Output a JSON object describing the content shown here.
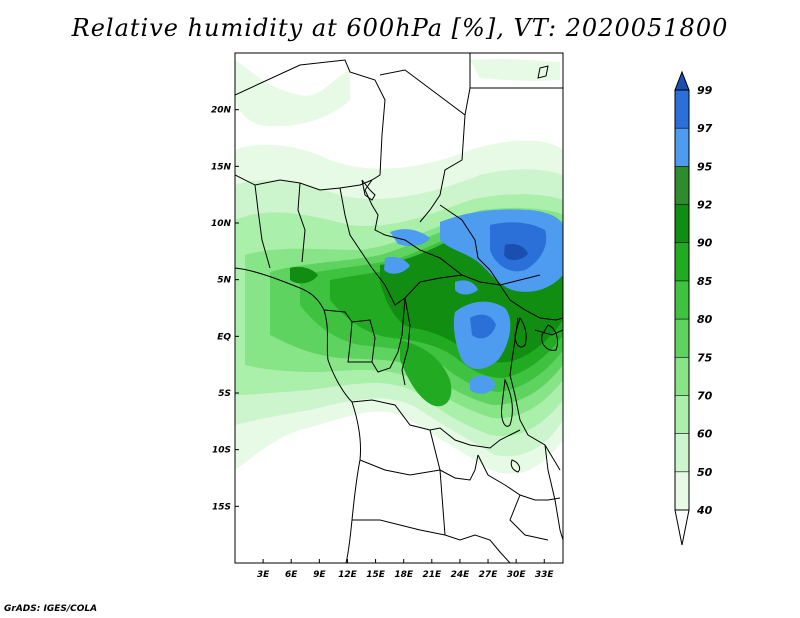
{
  "title": "Relative humidity at 600hPa [%], VT: 2020051800",
  "credit": "GrADS: IGES/COLA",
  "map": {
    "lon_range": [
      0,
      35
    ],
    "lat_range": [
      -20,
      25
    ],
    "lon_ticks": [
      "3E",
      "6E",
      "9E",
      "12E",
      "15E",
      "18E",
      "21E",
      "24E",
      "27E",
      "30E",
      "33E"
    ],
    "lat_ticks": [
      "20N",
      "15N",
      "10N",
      "5N",
      "EQ",
      "5S",
      "10S",
      "15S"
    ]
  },
  "colorbar": {
    "levels": [
      "40",
      "50",
      "60",
      "70",
      "75",
      "80",
      "85",
      "90",
      "92",
      "95",
      "97",
      "99"
    ],
    "colors": [
      "#ffffff",
      "#e6fae6",
      "#cdf5cd",
      "#aaefaa",
      "#87e487",
      "#5fd35f",
      "#3fc23f",
      "#22ab22",
      "#118d11",
      "#2d8c2d",
      "#4d9cf0",
      "#2b6fd8",
      "#1a4fb0"
    ]
  }
}
